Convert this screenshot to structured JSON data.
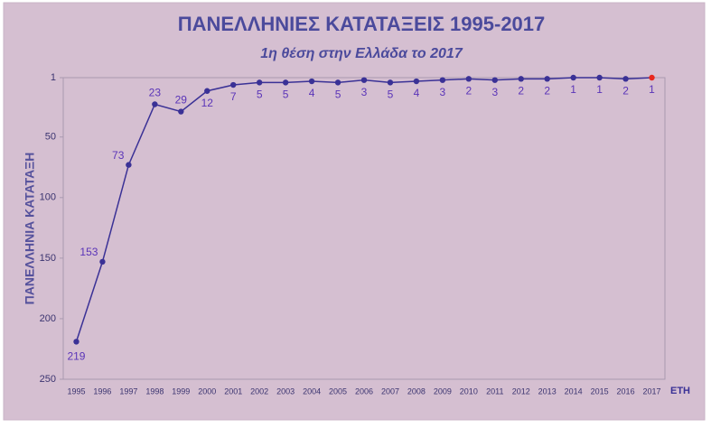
{
  "chart_data": {
    "type": "line",
    "title": "ΠΑΝΕΛΛΗΝΙΕΣ ΚΑΤΑΤΑΞΕΙΣ 1995-2017",
    "subtitle": "1η θέση στην Ελλάδα το 2017",
    "x_label": "ΕΤΗ",
    "y_label": "ΠΑΝΕΛΛΗΝΙΑ ΚΑΤΑΤΑΞΗ",
    "categories": [
      "1995",
      "1996",
      "1997",
      "1998",
      "1999",
      "2000",
      "2001",
      "2002",
      "2003",
      "2004",
      "2005",
      "2006",
      "2007",
      "2008",
      "2009",
      "2010",
      "2011",
      "2012",
      "2013",
      "2014",
      "2015",
      "2016",
      "2017"
    ],
    "series": [
      {
        "name": "ΠΑΝΕΛΛΗΝΙΑ ΚΑΤΑΤΑΞΗ",
        "color": "#3a3196",
        "values": [
          219,
          153,
          73,
          23,
          29,
          12,
          7,
          5,
          5,
          4,
          5,
          3,
          5,
          4,
          3,
          2,
          3,
          2,
          2,
          1,
          1,
          2,
          1
        ]
      }
    ],
    "highlight": {
      "index": 22,
      "color": "#e8281e"
    },
    "ylim": [
      1,
      250
    ],
    "y_reversed": true,
    "yticks": [
      1,
      50,
      100,
      150,
      200,
      250
    ],
    "grid": false
  }
}
